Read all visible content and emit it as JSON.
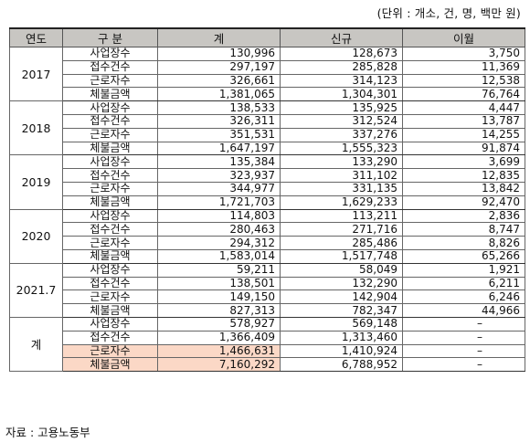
{
  "unit_note": "(단위 : 개소, 건, 명, 백만 원)",
  "headers": {
    "year": "연도",
    "category": "구 분",
    "total": "계",
    "new": "신규",
    "transfer": "이월"
  },
  "groups": [
    {
      "year": "2017",
      "rows": [
        {
          "cat": "사업장수",
          "total": "130,996",
          "new": "128,673",
          "transfer": "3,750"
        },
        {
          "cat": "접수건수",
          "total": "297,197",
          "new": "285,828",
          "transfer": "11,369"
        },
        {
          "cat": "근로자수",
          "total": "326,661",
          "new": "314,123",
          "transfer": "12,538"
        },
        {
          "cat": "체불금액",
          "total": "1,381,065",
          "new": "1,304,301",
          "transfer": "76,764"
        }
      ]
    },
    {
      "year": "2018",
      "rows": [
        {
          "cat": "사업장수",
          "total": "138,533",
          "new": "135,925",
          "transfer": "4,447"
        },
        {
          "cat": "접수건수",
          "total": "326,311",
          "new": "312,524",
          "transfer": "13,787"
        },
        {
          "cat": "근로자수",
          "total": "351,531",
          "new": "337,276",
          "transfer": "14,255"
        },
        {
          "cat": "체불금액",
          "total": "1,647,197",
          "new": "1,555,323",
          "transfer": "91,874"
        }
      ]
    },
    {
      "year": "2019",
      "rows": [
        {
          "cat": "사업장수",
          "total": "135,384",
          "new": "133,290",
          "transfer": "3,699"
        },
        {
          "cat": "접수건수",
          "total": "323,937",
          "new": "311,102",
          "transfer": "12,835"
        },
        {
          "cat": "근로자수",
          "total": "344,977",
          "new": "331,135",
          "transfer": "13,842"
        },
        {
          "cat": "체불금액",
          "total": "1,721,703",
          "new": "1,629,233",
          "transfer": "92,470"
        }
      ]
    },
    {
      "year": "2020",
      "rows": [
        {
          "cat": "사업장수",
          "total": "114,803",
          "new": "113,211",
          "transfer": "2,836"
        },
        {
          "cat": "접수건수",
          "total": "280,463",
          "new": "271,716",
          "transfer": "8,747"
        },
        {
          "cat": "근로자수",
          "total": "294,312",
          "new": "285,486",
          "transfer": "8,826"
        },
        {
          "cat": "체불금액",
          "total": "1,583,014",
          "new": "1,517,748",
          "transfer": "65,266"
        }
      ]
    },
    {
      "year": "2021.7",
      "rows": [
        {
          "cat": "사업장수",
          "total": "59,211",
          "new": "58,049",
          "transfer": "1,921"
        },
        {
          "cat": "접수건수",
          "total": "138,501",
          "new": "132,290",
          "transfer": "6,211"
        },
        {
          "cat": "근로자수",
          "total": "149,150",
          "new": "142,904",
          "transfer": "6,246"
        },
        {
          "cat": "체불금액",
          "total": "827,313",
          "new": "782,347",
          "transfer": "44,966"
        }
      ]
    },
    {
      "year": "계",
      "rows": [
        {
          "cat": "사업장수",
          "total": "578,927",
          "new": "569,148",
          "transfer": "–"
        },
        {
          "cat": "접수건수",
          "total": "1,366,409",
          "new": "1,313,460",
          "transfer": "–"
        },
        {
          "cat": "근로자수",
          "total": "1,466,631",
          "new": "1,410,924",
          "transfer": "–",
          "highlight": true
        },
        {
          "cat": "체불금액",
          "total": "7,160,292",
          "new": "6,788,952",
          "transfer": "–",
          "highlight": true
        }
      ]
    }
  ],
  "highlight_color": "#fbd8c6",
  "source": "자료 : 고용노동부"
}
